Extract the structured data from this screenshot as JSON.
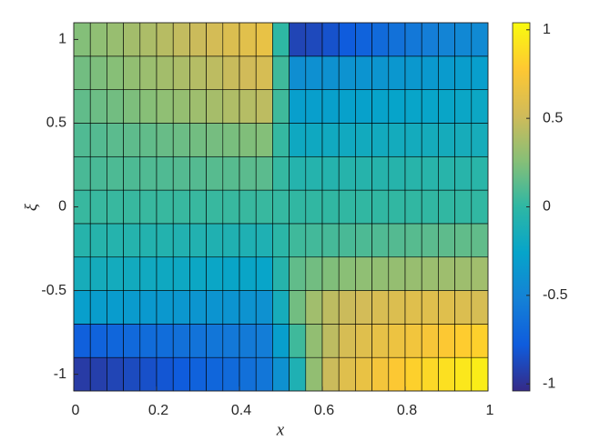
{
  "chart_data": {
    "type": "heatmap",
    "x_label": "x",
    "y_label": "ξ",
    "x": [
      0.02,
      0.06,
      0.1,
      0.14,
      0.18,
      0.22,
      0.26,
      0.3,
      0.34,
      0.38,
      0.42,
      0.46,
      0.5,
      0.54,
      0.58,
      0.62,
      0.66,
      0.7,
      0.74,
      0.78,
      0.82,
      0.86,
      0.9,
      0.94,
      0.98
    ],
    "y": [
      -1,
      -0.8,
      -0.6,
      -0.4,
      -0.2,
      0,
      0.2,
      0.4,
      0.6,
      0.8,
      1
    ],
    "values": [
      [
        -0.95,
        -0.93,
        -0.9,
        -0.87,
        -0.84,
        -0.81,
        -0.78,
        -0.74,
        -0.71,
        -0.68,
        -0.64,
        -0.6,
        -0.4,
        -0.1,
        0.3,
        0.5,
        0.6,
        0.66,
        0.72,
        0.77,
        0.82,
        0.86,
        0.9,
        0.94,
        0.97
      ],
      [
        -0.75,
        -0.73,
        -0.71,
        -0.69,
        -0.67,
        -0.66,
        -0.64,
        -0.62,
        -0.6,
        -0.58,
        -0.57,
        -0.55,
        -0.3,
        0.05,
        0.3,
        0.45,
        0.55,
        0.6,
        0.64,
        0.68,
        0.71,
        0.74,
        0.77,
        0.8,
        0.82
      ],
      [
        -0.3,
        -0.31,
        -0.32,
        -0.33,
        -0.34,
        -0.35,
        -0.36,
        -0.37,
        -0.38,
        -0.38,
        -0.39,
        -0.4,
        -0.15,
        0.2,
        0.35,
        0.45,
        0.5,
        0.53,
        0.56,
        0.58,
        0.6,
        0.6,
        0.6,
        0.58,
        0.55
      ],
      [
        -0.15,
        -0.16,
        -0.17,
        -0.18,
        -0.19,
        -0.2,
        -0.21,
        -0.22,
        -0.23,
        -0.24,
        -0.24,
        -0.25,
        -0.05,
        0.15,
        0.2,
        0.24,
        0.27,
        0.29,
        0.3,
        0.31,
        0.32,
        0.33,
        0.34,
        0.34,
        0.35
      ],
      [
        -0.05,
        -0.05,
        -0.06,
        -0.06,
        -0.07,
        -0.07,
        -0.08,
        -0.08,
        -0.09,
        -0.09,
        -0.1,
        -0.1,
        -0.02,
        0.05,
        0.06,
        0.07,
        0.08,
        0.09,
        0.1,
        0.11,
        0.12,
        0.13,
        0.14,
        0.15,
        0.15
      ],
      [
        0.03,
        0.03,
        0.03,
        0.03,
        0.03,
        0.03,
        0.03,
        0.03,
        0.03,
        0.03,
        0.03,
        0.03,
        0.02,
        0.01,
        0.01,
        0.01,
        0.01,
        0.01,
        0.01,
        0.01,
        0.01,
        0.01,
        0.01,
        0.01,
        0.01
      ],
      [
        0.08,
        0.08,
        0.09,
        0.09,
        0.1,
        0.1,
        0.11,
        0.11,
        0.12,
        0.12,
        0.13,
        0.13,
        0.02,
        -0.06,
        -0.06,
        -0.06,
        -0.05,
        -0.05,
        -0.05,
        -0.05,
        -0.04,
        -0.04,
        -0.04,
        -0.04,
        -0.03
      ],
      [
        0.1,
        0.11,
        0.13,
        0.14,
        0.15,
        0.17,
        0.18,
        0.2,
        0.21,
        0.22,
        0.24,
        0.25,
        0.02,
        -0.2,
        -0.2,
        -0.19,
        -0.19,
        -0.18,
        -0.18,
        -0.17,
        -0.17,
        -0.16,
        -0.16,
        -0.15,
        -0.15
      ],
      [
        0.15,
        0.18,
        0.2,
        0.23,
        0.26,
        0.29,
        0.31,
        0.34,
        0.37,
        0.4,
        0.42,
        0.45,
        0.05,
        -0.3,
        -0.3,
        -0.29,
        -0.28,
        -0.28,
        -0.27,
        -0.26,
        -0.25,
        -0.25,
        -0.24,
        -0.23,
        -0.22
      ],
      [
        0.2,
        0.23,
        0.26,
        0.3,
        0.33,
        0.36,
        0.39,
        0.42,
        0.45,
        0.49,
        0.52,
        0.55,
        0.05,
        -0.42,
        -0.41,
        -0.4,
        -0.39,
        -0.38,
        -0.37,
        -0.36,
        -0.35,
        -0.34,
        -0.33,
        -0.31,
        -0.3
      ],
      [
        0.25,
        0.29,
        0.32,
        0.36,
        0.39,
        0.43,
        0.47,
        0.5,
        0.54,
        0.58,
        0.61,
        0.65,
        0.0,
        -0.9,
        -0.88,
        -0.83,
        -0.78,
        -0.73,
        -0.68,
        -0.63,
        -0.58,
        -0.54,
        -0.5,
        -0.47,
        -0.45
      ]
    ],
    "xlim": [
      0,
      1
    ],
    "ylim": [
      -1.1,
      1.1
    ],
    "xticks": [
      0,
      0.2,
      0.4,
      0.6,
      0.8,
      1
    ],
    "yticks": [
      -1,
      -0.5,
      0,
      0.5,
      1
    ],
    "clim": [
      -1.04,
      1.04
    ],
    "cticks": [
      -1,
      -0.5,
      0,
      0.5,
      1
    ],
    "colormap": [
      "#352a87",
      "#0f5cdd",
      "#1481d6",
      "#06a4ca",
      "#2eb7a4",
      "#87bf77",
      "#d1bb59",
      "#fec832",
      "#f9fb0e"
    ],
    "edge_color": "#000000"
  }
}
